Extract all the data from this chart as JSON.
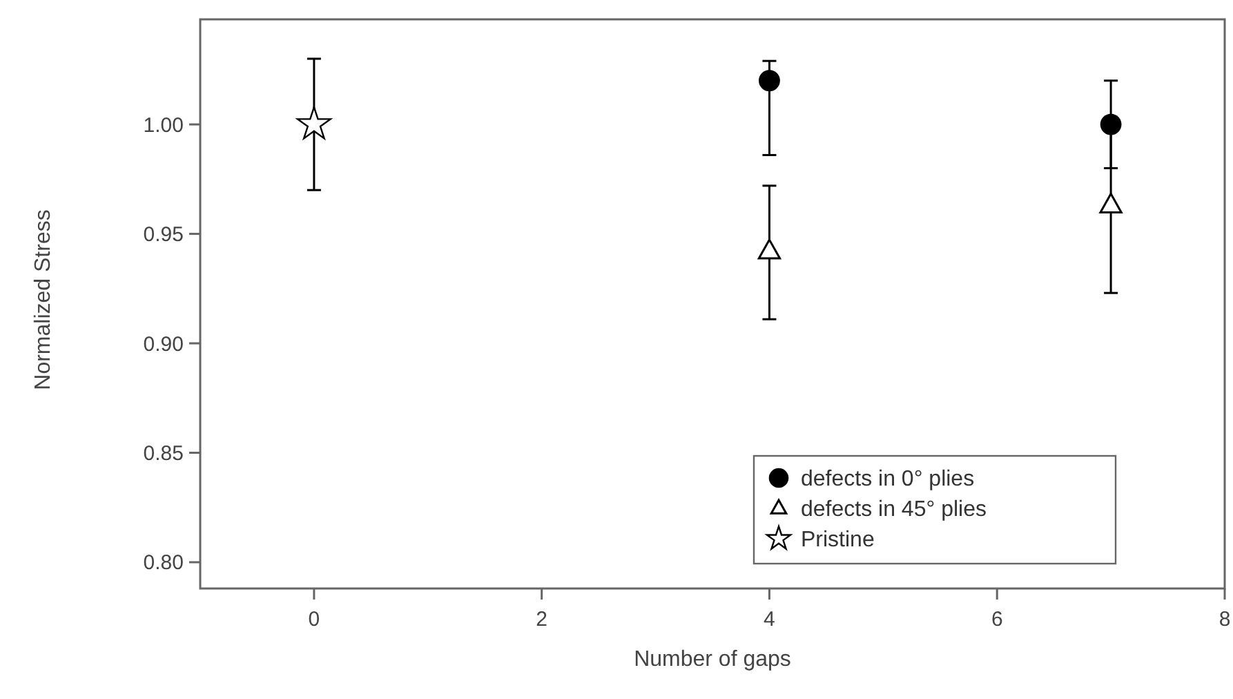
{
  "chart_data": {
    "type": "scatter",
    "xlabel": "Number of gaps",
    "ylabel": "Normalized Stress",
    "xlim": [
      -1,
      8
    ],
    "xticks": [
      0,
      2,
      4,
      6,
      8
    ],
    "ylim": [
      0.788,
      1.048
    ],
    "yticks": [
      {
        "value": 0.8,
        "label": "0.80"
      },
      {
        "value": 0.85,
        "label": "0.85"
      },
      {
        "value": 0.9,
        "label": "0.90"
      },
      {
        "value": 0.95,
        "label": "0.95"
      },
      {
        "value": 1.0,
        "label": "1.00"
      }
    ],
    "legend": "bottom right",
    "series": [
      {
        "name": "defects in 0° plies",
        "color": "#000000",
        "marker": "circle",
        "x": [
          4,
          7
        ],
        "values": [
          1.02,
          1.0
        ],
        "errors": [
          [
            0.986,
            1.029
          ],
          [
            0.98,
            1.02
          ]
        ]
      },
      {
        "name": "defects in 45° plies",
        "color": "#000000",
        "marker": "triangle",
        "x": [
          4,
          7
        ],
        "values": [
          0.942,
          0.963
        ],
        "errors": [
          [
            0.911,
            0.972
          ],
          [
            0.923,
            1.003
          ]
        ]
      },
      {
        "name": "Pristine",
        "color": "#000000",
        "marker": "star",
        "x": [
          0
        ],
        "values": [
          1.0
        ],
        "errors": [
          0.03
        ]
      }
    ]
  }
}
